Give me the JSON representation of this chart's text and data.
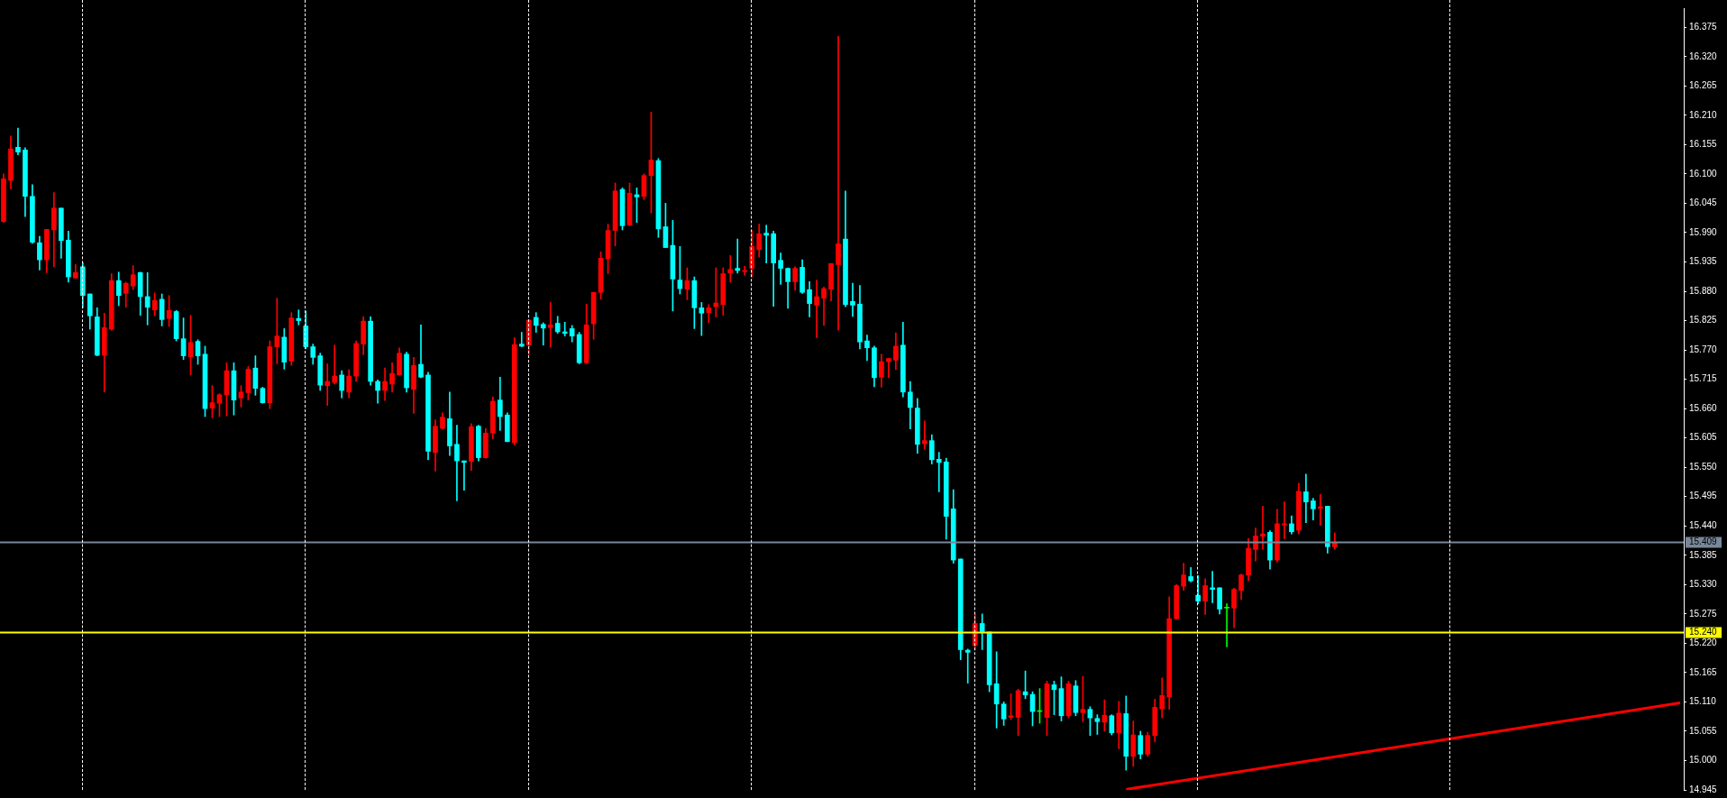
{
  "chart_data": {
    "type": "candlestick",
    "categories": [
      null,
      null,
      null,
      null,
      null,
      null,
      null,
      null,
      null,
      null,
      null,
      null,
      null,
      null,
      null,
      null,
      null,
      null,
      null,
      null,
      null,
      null,
      null,
      null,
      null,
      null,
      null,
      null,
      null,
      null,
      null,
      null,
      null,
      null,
      null,
      null,
      null,
      null,
      null,
      null,
      null,
      null,
      null,
      null,
      null,
      null,
      null,
      null,
      null,
      null,
      null,
      null,
      null,
      null,
      null,
      null,
      null,
      null,
      null,
      null,
      null,
      null,
      null,
      null,
      null,
      null,
      null,
      null,
      null,
      null,
      null,
      null,
      null,
      null,
      null,
      null,
      null,
      null,
      null,
      null,
      null,
      null,
      null,
      null,
      null,
      null,
      null,
      null,
      null,
      null,
      null,
      null,
      null,
      null,
      null,
      null,
      null,
      null,
      null,
      null,
      null,
      null,
      null,
      null,
      null,
      null,
      null,
      null,
      null,
      null,
      null,
      null,
      null,
      null,
      null,
      null,
      null,
      null,
      null,
      null,
      null,
      null,
      null,
      null,
      null,
      null,
      null,
      null,
      null,
      null,
      null,
      null,
      null,
      null,
      null,
      null,
      null,
      null,
      null,
      null,
      null,
      null,
      null,
      null,
      null,
      null,
      null,
      null,
      null,
      null,
      null,
      null,
      null,
      null,
      null,
      null,
      null,
      null,
      null,
      null,
      null,
      null,
      null,
      null,
      null,
      null,
      null,
      null,
      null,
      null,
      null,
      null,
      null,
      null,
      null,
      null,
      null,
      null,
      null,
      null,
      null,
      null,
      null,
      null,
      null,
      null,
      null,
      null,
      null,
      null,
      null,
      null,
      null,
      null,
      null,
      null,
      null,
      null,
      null,
      null,
      null,
      null,
      null,
      null,
      null,
      null,
      null,
      null,
      null,
      null,
      null,
      null,
      null,
      null,
      null,
      null,
      null,
      null,
      null,
      null,
      null,
      null,
      null,
      null,
      null,
      null,
      null,
      null,
      null,
      null,
      null,
      null,
      null,
      null
    ],
    "ohlc": [
      [
        16.011,
        16.1,
        16.009,
        16.091
      ],
      [
        16.088,
        16.171,
        16.072,
        16.147
      ],
      [
        16.15,
        16.186,
        16.136,
        16.141
      ],
      [
        16.145,
        16.149,
        16.02,
        16.058
      ],
      [
        16.058,
        16.08,
        15.97,
        15.972
      ],
      [
        15.971,
        15.983,
        15.92,
        15.939
      ],
      [
        15.939,
        15.996,
        15.915,
        15.996
      ],
      [
        15.995,
        16.065,
        15.926,
        16.036
      ],
      [
        16.036,
        16.036,
        15.942,
        15.975
      ],
      [
        15.976,
        15.993,
        15.897,
        15.907
      ],
      [
        15.905,
        15.93,
        15.904,
        15.915
      ],
      [
        15.926,
        15.934,
        15.849,
        15.872
      ],
      [
        15.875,
        15.875,
        15.809,
        15.834
      ],
      [
        15.832,
        15.849,
        15.759,
        15.76
      ],
      [
        15.76,
        15.839,
        15.691,
        15.812
      ],
      [
        15.809,
        15.913,
        15.807,
        15.9
      ],
      [
        15.9,
        15.916,
        15.853,
        15.872
      ],
      [
        15.876,
        15.897,
        15.85,
        15.895
      ],
      [
        15.89,
        15.928,
        15.883,
        15.911
      ],
      [
        15.915,
        15.916,
        15.835,
        15.87
      ],
      [
        15.87,
        15.915,
        15.817,
        15.85
      ],
      [
        15.845,
        15.877,
        15.834,
        15.863
      ],
      [
        15.865,
        15.875,
        15.815,
        15.827
      ],
      [
        15.829,
        15.872,
        15.814,
        15.844
      ],
      [
        15.842,
        15.844,
        15.787,
        15.791
      ],
      [
        15.791,
        15.83,
        15.752,
        15.759
      ],
      [
        15.757,
        15.835,
        15.723,
        15.784
      ],
      [
        15.786,
        15.789,
        15.743,
        15.759
      ],
      [
        15.762,
        15.777,
        15.645,
        15.66
      ],
      [
        15.661,
        15.703,
        15.643,
        15.671
      ],
      [
        15.67,
        15.688,
        15.645,
        15.686
      ],
      [
        15.686,
        15.746,
        15.646,
        15.731
      ],
      [
        15.731,
        15.746,
        15.648,
        15.676
      ],
      [
        15.68,
        15.703,
        15.663,
        15.691
      ],
      [
        15.69,
        15.739,
        15.676,
        15.734
      ],
      [
        15.736,
        15.759,
        15.685,
        15.698
      ],
      [
        15.698,
        15.7,
        15.67,
        15.671
      ],
      [
        15.671,
        15.787,
        15.66,
        15.776
      ],
      [
        15.776,
        15.867,
        15.744,
        15.796
      ],
      [
        15.794,
        15.81,
        15.734,
        15.747
      ],
      [
        15.749,
        15.84,
        15.741,
        15.83
      ],
      [
        15.829,
        15.845,
        15.817,
        15.825
      ],
      [
        15.815,
        15.843,
        15.772,
        15.776
      ],
      [
        15.776,
        15.781,
        15.743,
        15.756
      ],
      [
        15.759,
        15.764,
        15.694,
        15.704
      ],
      [
        15.703,
        15.744,
        15.666,
        15.711
      ],
      [
        15.709,
        15.779,
        15.706,
        15.721
      ],
      [
        15.723,
        15.731,
        15.68,
        15.694
      ],
      [
        15.691,
        15.733,
        15.68,
        15.721
      ],
      [
        15.721,
        15.787,
        15.711,
        15.782
      ],
      [
        15.781,
        15.832,
        15.761,
        15.824
      ],
      [
        15.824,
        15.832,
        15.704,
        15.711
      ],
      [
        15.711,
        15.714,
        15.67,
        15.694
      ],
      [
        15.694,
        15.736,
        15.675,
        15.711
      ],
      [
        15.706,
        15.746,
        15.691,
        15.726
      ],
      [
        15.723,
        15.774,
        15.723,
        15.764
      ],
      [
        15.762,
        15.766,
        15.691,
        15.699
      ],
      [
        15.696,
        15.756,
        15.651,
        15.741
      ],
      [
        15.743,
        15.817,
        15.718,
        15.719
      ],
      [
        15.723,
        15.728,
        15.564,
        15.58
      ],
      [
        15.578,
        15.639,
        15.543,
        15.627
      ],
      [
        15.623,
        15.652,
        15.622,
        15.644
      ],
      [
        15.641,
        15.691,
        15.572,
        15.59
      ],
      [
        15.593,
        15.629,
        15.487,
        15.562
      ],
      [
        15.562,
        15.562,
        15.507,
        15.559
      ],
      [
        15.561,
        15.632,
        15.544,
        15.626
      ],
      [
        15.627,
        15.629,
        15.562,
        15.568
      ],
      [
        15.568,
        15.623,
        15.567,
        15.614
      ],
      [
        15.614,
        15.682,
        15.603,
        15.674
      ],
      [
        15.676,
        15.719,
        15.619,
        15.645
      ],
      [
        15.648,
        15.652,
        15.598,
        15.598
      ],
      [
        15.596,
        15.793,
        15.592,
        15.78
      ],
      [
        15.781,
        15.803,
        15.776,
        15.777
      ],
      [
        15.779,
        15.826,
        15.761,
        15.826
      ],
      [
        15.831,
        15.84,
        15.803,
        15.816
      ],
      [
        15.818,
        15.821,
        15.779,
        15.811
      ],
      [
        15.812,
        15.859,
        15.775,
        15.817
      ],
      [
        15.82,
        15.833,
        15.801,
        15.804
      ],
      [
        15.804,
        15.822,
        15.796,
        15.801
      ],
      [
        15.81,
        15.816,
        15.785,
        15.796
      ],
      [
        15.799,
        15.803,
        15.744,
        15.746
      ],
      [
        15.746,
        15.856,
        15.744,
        15.817
      ],
      [
        15.819,
        15.878,
        15.79,
        15.878
      ],
      [
        15.878,
        15.954,
        15.865,
        15.942
      ],
      [
        15.941,
        16.006,
        15.913,
        15.994
      ],
      [
        15.994,
        16.083,
        15.965,
        16.068
      ],
      [
        16.071,
        16.074,
        15.995,
        16.003
      ],
      [
        16.004,
        16.083,
        16.003,
        16.064
      ],
      [
        16.061,
        16.074,
        16.009,
        16.057
      ],
      [
        16.058,
        16.1,
        16.052,
        16.097
      ],
      [
        16.097,
        16.216,
        16.027,
        16.126
      ],
      [
        16.125,
        16.129,
        15.981,
        15.997
      ],
      [
        16.001,
        16.045,
        15.962,
        15.962
      ],
      [
        15.966,
        16.013,
        15.843,
        15.903
      ],
      [
        15.901,
        15.964,
        15.875,
        15.885
      ],
      [
        15.884,
        15.924,
        15.864,
        15.9
      ],
      [
        15.9,
        15.907,
        15.81,
        15.849
      ],
      [
        15.849,
        15.859,
        15.797,
        15.839
      ],
      [
        15.84,
        15.855,
        15.821,
        15.849
      ],
      [
        15.851,
        15.924,
        15.832,
        15.858
      ],
      [
        15.855,
        15.924,
        15.835,
        15.913
      ],
      [
        15.914,
        15.947,
        15.897,
        15.921
      ],
      [
        15.923,
        15.978,
        15.914,
        15.919
      ],
      [
        15.917,
        15.927,
        15.91,
        15.919
      ],
      [
        15.923,
        15.994,
        15.907,
        15.964
      ],
      [
        15.958,
        16.006,
        15.944,
        15.988
      ],
      [
        15.989,
        16.004,
        15.933,
        15.985
      ],
      [
        15.988,
        15.993,
        15.852,
        15.933
      ],
      [
        15.938,
        15.952,
        15.893,
        15.923
      ],
      [
        15.923,
        15.924,
        15.848,
        15.898
      ],
      [
        15.898,
        15.926,
        15.882,
        15.923
      ],
      [
        15.925,
        15.939,
        15.876,
        15.878
      ],
      [
        15.883,
        15.898,
        15.832,
        15.857
      ],
      [
        15.854,
        15.901,
        15.793,
        15.87
      ],
      [
        15.867,
        15.888,
        15.816,
        15.885
      ],
      [
        15.884,
        15.932,
        15.862,
        15.932
      ],
      [
        15.93,
        16.358,
        15.807,
        15.969
      ],
      [
        15.978,
        16.068,
        15.851,
        15.855
      ],
      [
        15.861,
        15.895,
        15.833,
        15.854
      ],
      [
        15.856,
        15.891,
        15.772,
        15.785
      ],
      [
        15.787,
        15.798,
        15.75,
        15.774
      ],
      [
        15.774,
        15.777,
        15.701,
        15.718
      ],
      [
        15.719,
        15.762,
        15.7,
        15.748
      ],
      [
        15.748,
        15.754,
        15.718,
        15.754
      ],
      [
        15.751,
        15.802,
        15.733,
        15.777
      ],
      [
        15.779,
        15.822,
        15.682,
        15.691
      ],
      [
        15.691,
        15.711,
        15.622,
        15.662
      ],
      [
        15.661,
        15.679,
        15.576,
        15.593
      ],
      [
        15.594,
        15.637,
        15.584,
        15.6
      ],
      [
        15.6,
        15.611,
        15.556,
        15.564
      ],
      [
        15.565,
        15.578,
        15.504,
        15.559
      ],
      [
        15.56,
        15.567,
        15.415,
        15.458
      ],
      [
        15.472,
        15.508,
        15.37,
        15.376
      ],
      [
        15.378,
        15.378,
        15.189,
        15.208
      ],
      [
        15.207,
        15.209,
        15.145,
        15.203
      ],
      [
        15.216,
        15.275,
        15.208,
        15.257
      ],
      [
        15.257,
        15.275,
        15.208,
        15.242
      ],
      [
        15.241,
        15.241,
        15.129,
        15.142
      ],
      [
        15.144,
        15.204,
        15.061,
        15.106
      ],
      [
        15.106,
        15.11,
        15.066,
        15.078
      ],
      [
        15.081,
        15.125,
        15.077,
        15.084
      ],
      [
        15.081,
        15.134,
        15.047,
        15.131
      ],
      [
        15.129,
        15.168,
        15.116,
        15.123
      ],
      [
        15.124,
        15.129,
        15.065,
        15.092
      ],
      [
        15.092,
        15.135,
        15.07,
        15.092
      ],
      [
        15.081,
        15.149,
        15.047,
        15.144
      ],
      [
        15.142,
        15.149,
        15.086,
        15.133
      ],
      [
        15.135,
        15.157,
        15.074,
        15.084
      ],
      [
        15.084,
        15.149,
        15.08,
        15.144
      ],
      [
        15.14,
        15.15,
        15.084,
        15.09
      ],
      [
        15.09,
        15.158,
        15.073,
        15.096
      ],
      [
        15.096,
        15.101,
        15.047,
        15.08
      ],
      [
        15.079,
        15.086,
        15.049,
        15.073
      ],
      [
        15.072,
        15.114,
        15.055,
        15.085
      ],
      [
        15.084,
        15.086,
        15.048,
        15.052
      ],
      [
        15.052,
        15.111,
        15.022,
        15.089
      ],
      [
        15.088,
        15.121,
        14.982,
        15.008
      ],
      [
        15.008,
        15.074,
        14.989,
        15.048
      ],
      [
        15.047,
        15.055,
        15.003,
        15.012
      ],
      [
        15.012,
        15.053,
        15.008,
        15.047
      ],
      [
        15.047,
        15.115,
        15.035,
        15.1
      ],
      [
        15.097,
        15.155,
        15.08,
        15.122
      ],
      [
        15.119,
        15.307,
        15.096,
        15.266
      ],
      [
        15.266,
        15.33,
        15.265,
        15.328
      ],
      [
        15.327,
        15.37,
        15.319,
        15.348
      ],
      [
        15.345,
        15.362,
        15.335,
        15.337
      ],
      [
        15.31,
        15.347,
        15.294,
        15.299
      ],
      [
        15.299,
        15.341,
        15.274,
        15.328
      ],
      [
        15.324,
        15.355,
        15.296,
        15.321
      ],
      [
        15.324,
        15.324,
        15.275,
        15.284
      ],
      [
        15.286,
        15.294,
        15.213,
        15.286
      ],
      [
        15.286,
        15.323,
        15.249,
        15.321
      ],
      [
        15.319,
        15.35,
        15.302,
        15.348
      ],
      [
        15.348,
        15.416,
        15.337,
        15.398
      ],
      [
        15.396,
        15.436,
        15.374,
        15.421
      ],
      [
        15.421,
        15.477,
        15.396,
        15.425
      ],
      [
        15.428,
        15.431,
        15.359,
        15.376
      ],
      [
        15.376,
        15.471,
        15.372,
        15.444
      ],
      [
        15.442,
        15.485,
        15.416,
        15.444
      ],
      [
        15.444,
        15.459,
        15.425,
        15.429
      ],
      [
        15.432,
        15.52,
        15.425,
        15.505
      ],
      [
        15.504,
        15.537,
        15.446,
        15.485
      ],
      [
        15.487,
        15.492,
        15.451,
        15.472
      ],
      [
        15.473,
        15.499,
        15.441,
        15.476
      ],
      [
        15.477,
        15.477,
        15.389,
        15.401
      ],
      [
        15.401,
        15.427,
        15.396,
        15.409
      ],
      null,
      null,
      null,
      null,
      null,
      null,
      null,
      null,
      null,
      null,
      null,
      null,
      null,
      null,
      null,
      null,
      null,
      null,
      null,
      null,
      null,
      null,
      null,
      null,
      null,
      null,
      null,
      null,
      null,
      null,
      null,
      null,
      null,
      null,
      null,
      null,
      null,
      null,
      null,
      null,
      null,
      null,
      null,
      null,
      null,
      null,
      null,
      null
    ],
    "colors": [
      "#ff0000",
      "#ff0000",
      "#00ffff",
      "#00ffff",
      "#00ffff",
      "#00ffff",
      "#ff0000",
      "#ff0000",
      "#00ffff",
      "#00ffff",
      "#ff0000",
      "#00ffff",
      "#00ffff",
      "#00ffff",
      "#ff0000",
      "#ff0000",
      "#00ffff",
      "#ff0000",
      "#ff0000",
      "#00ffff",
      "#00ffff",
      "#ff0000",
      "#00ffff",
      "#ff0000",
      "#00ffff",
      "#00ffff",
      "#ff0000",
      "#00ffff",
      "#00ffff",
      "#ff0000",
      "#ff0000",
      "#ff0000",
      "#00ffff",
      "#ff0000",
      "#ff0000",
      "#00ffff",
      "#00ffff",
      "#ff0000",
      "#ff0000",
      "#00ffff",
      "#ff0000",
      "#00ffff",
      "#00ffff",
      "#00ffff",
      "#00ffff",
      "#ff0000",
      "#ff0000",
      "#00ffff",
      "#ff0000",
      "#ff0000",
      "#ff0000",
      "#00ffff",
      "#00ffff",
      "#ff0000",
      "#ff0000",
      "#ff0000",
      "#00ffff",
      "#ff0000",
      "#00ffff",
      "#00ffff",
      "#ff0000",
      "#ff0000",
      "#00ffff",
      "#00ffff",
      "#00ffff",
      "#ff0000",
      "#00ffff",
      "#ff0000",
      "#ff0000",
      "#00ffff",
      "#00ffff",
      "#ff0000",
      "#00ffff",
      "#ff0000",
      "#00ffff",
      "#00ffff",
      "#ff0000",
      "#00ffff",
      "#00ffff",
      "#00ffff",
      "#00ffff",
      "#ff0000",
      "#ff0000",
      "#ff0000",
      "#ff0000",
      "#ff0000",
      "#00ffff",
      "#ff0000",
      "#00ffff",
      "#ff0000",
      "#ff0000",
      "#00ffff",
      "#00ffff",
      "#00ffff",
      "#00ffff",
      "#ff0000",
      "#00ffff",
      "#00ffff",
      "#ff0000",
      "#ff0000",
      "#ff0000",
      "#ff0000",
      "#00ffff",
      "#ff0000",
      "#ff0000",
      "#ff0000",
      "#00ffff",
      "#00ffff",
      "#00ffff",
      "#00ffff",
      "#ff0000",
      "#00ffff",
      "#00ffff",
      "#ff0000",
      "#ff0000",
      "#ff0000",
      "#ff0000",
      "#00ffff",
      "#00ffff",
      "#00ffff",
      "#00ffff",
      "#00ffff",
      "#ff0000",
      "#ff0000",
      "#ff0000",
      "#00ffff",
      "#00ffff",
      "#00ffff",
      "#ff0000",
      "#00ffff",
      "#00ffff",
      "#00ffff",
      "#00ffff",
      "#00ffff",
      "#00ffff",
      "#ff0000",
      "#00ffff",
      "#00ffff",
      "#00ffff",
      "#00ffff",
      "#ff0000",
      "#ff0000",
      "#00ffff",
      "#00ffff",
      "#00ff00",
      "#ff0000",
      "#00ffff",
      "#00ffff",
      "#ff0000",
      "#00ffff",
      "#ff0000",
      "#00ffff",
      "#00ffff",
      "#ff0000",
      "#00ffff",
      "#ff0000",
      "#00ffff",
      "#ff0000",
      "#00ffff",
      "#ff0000",
      "#ff0000",
      "#ff0000",
      "#ff0000",
      "#ff0000",
      "#ff0000",
      "#00ffff",
      "#00ffff",
      "#ff0000",
      "#00ffff",
      "#00ffff",
      "#00ff00",
      "#ff0000",
      "#ff0000",
      "#ff0000",
      "#ff0000",
      "#ff0000",
      "#00ffff",
      "#ff0000",
      "#ff0000",
      "#00ffff",
      "#ff0000",
      "#00ffff",
      "#00ffff",
      "#ff0000",
      "#00ffff",
      "#ff0000",
      null,
      null,
      null,
      null,
      null,
      null,
      null,
      null,
      null,
      null,
      null,
      null,
      null,
      null,
      null,
      null,
      null,
      null,
      null,
      null,
      null,
      null,
      null,
      null,
      null,
      null,
      null,
      null,
      null,
      null,
      null,
      null,
      null,
      null,
      null,
      null,
      null,
      null,
      null,
      null,
      null,
      null,
      null,
      null,
      null,
      null,
      null,
      null
    ],
    "series": [
      {
        "type": "line",
        "color": "#ff0000",
        "values": [
          null,
          null,
          null,
          null,
          null,
          null,
          null,
          null,
          null,
          null,
          null,
          null,
          null,
          null,
          null,
          null,
          null,
          null,
          null,
          null,
          null,
          null,
          null,
          null,
          null,
          null,
          null,
          null,
          null,
          null,
          null,
          null,
          null,
          null,
          null,
          null,
          null,
          null,
          null,
          null,
          null,
          null,
          null,
          null,
          null,
          null,
          null,
          null,
          null,
          null,
          null,
          null,
          null,
          null,
          null,
          null,
          null,
          null,
          null,
          null,
          null,
          null,
          null,
          null,
          null,
          null,
          null,
          null,
          null,
          null,
          null,
          null,
          null,
          null,
          null,
          null,
          null,
          null,
          null,
          null,
          null,
          null,
          null,
          null,
          null,
          null,
          null,
          null,
          null,
          null,
          null,
          null,
          null,
          null,
          null,
          null,
          null,
          null,
          null,
          null,
          null,
          null,
          null,
          null,
          null,
          null,
          null,
          null,
          null,
          null,
          null,
          null,
          null,
          null,
          null,
          null,
          null,
          null,
          null,
          null,
          null,
          null,
          null,
          null,
          null,
          null,
          null,
          null,
          null,
          null,
          null,
          null,
          null,
          null,
          null,
          null,
          null,
          null,
          null,
          null,
          null,
          null,
          null,
          null,
          null,
          null,
          null,
          null,
          null,
          null,
          null,
          null,
          null,
          null,
          null,
          null,
          14.946,
          null,
          null,
          null,
          null,
          null,
          null,
          null,
          null,
          null,
          null,
          null,
          null,
          null,
          null,
          null,
          null,
          null,
          null,
          null,
          null,
          null,
          null,
          null,
          null,
          null,
          null,
          null,
          null,
          null,
          null,
          null,
          null,
          null,
          null,
          null,
          null,
          null,
          null,
          null,
          null,
          null,
          null,
          null,
          null,
          null,
          null,
          null,
          null,
          null,
          null,
          null,
          null,
          null,
          null,
          null,
          null,
          null,
          null,
          null,
          null,
          null,
          null,
          null,
          null,
          null,
          null,
          null,
          null,
          null,
          null,
          null,
          null,
          null,
          null,
          null,
          null,
          15.108
        ]
      }
    ],
    "ylim": [
      14.945,
      16.411
    ],
    "yticks": [
      14.945,
      {
        "value": 15,
        "label": "15.000"
      },
      15.055,
      {
        "value": 15.11,
        "label": "15.110"
      },
      15.165,
      {
        "value": 15.22,
        "label": "15.220"
      },
      15.275,
      {
        "value": 15.33,
        "label": "15.330"
      },
      15.385,
      {
        "value": 15.44,
        "label": "15.440"
      },
      15.495,
      {
        "value": 15.55,
        "label": "15.550"
      },
      15.605,
      {
        "value": 15.66,
        "label": "15.660"
      },
      15.715,
      {
        "value": 15.77,
        "label": "15.770"
      },
      15.825,
      {
        "value": 15.88,
        "label": "15.880"
      },
      15.935,
      {
        "value": 15.99,
        "label": "15.990"
      },
      16.045,
      {
        "value": 16.1,
        "label": "16.100"
      },
      16.155,
      {
        "value": 16.21,
        "label": "16.210"
      },
      16.265,
      {
        "value": 16.32,
        "label": "16.320"
      },
      16.375
    ],
    "ref_lines": [
      {
        "axis": "y",
        "value": 15.409,
        "label": "15.409",
        "color": "#778899"
      },
      {
        "axis": "y",
        "value": 15.24,
        "label": "15.240",
        "color": "#ffff00"
      }
    ]
  }
}
